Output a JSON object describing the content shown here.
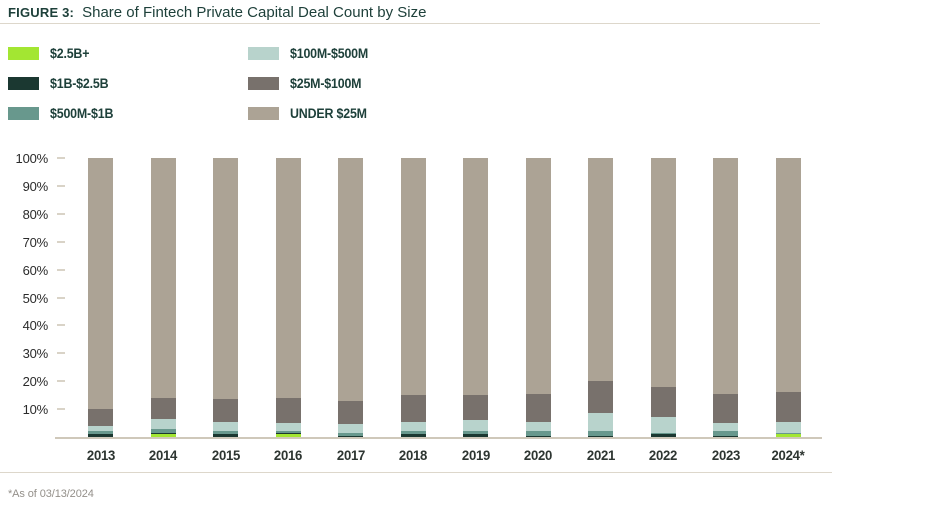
{
  "header": {
    "figure_label": "FIGURE 3:",
    "title": "Share of Fintech Private Capital Deal Count by Size"
  },
  "legend": {
    "items": [
      {
        "label": "$2.5B+",
        "color": "#a3e632"
      },
      {
        "label": "$1B-$2.5B",
        "color": "#1b3831"
      },
      {
        "label": "$500M-$1B",
        "color": "#68988d"
      },
      {
        "label": "$100M-$500M",
        "color": "#b8d3cc"
      },
      {
        "label": "$25M-$100M",
        "color": "#78716c"
      },
      {
        "label": "UNDER $25M",
        "color": "#aca395"
      }
    ]
  },
  "chart_data": {
    "type": "bar",
    "stacked": true,
    "title": "Share of Fintech Private Capital Deal Count by Size",
    "categories": [
      "2013",
      "2014",
      "2015",
      "2016",
      "2017",
      "2018",
      "2019",
      "2020",
      "2021",
      "2022",
      "2023",
      "2024*"
    ],
    "series": [
      {
        "name": "$2.5B+",
        "color": "#a3e632",
        "values": [
          0,
          1,
          0,
          1,
          0,
          0,
          0,
          0,
          0,
          0,
          0,
          1
        ]
      },
      {
        "name": "$1B-$2.5B",
        "color": "#1b3831",
        "values": [
          1,
          0.5,
          1,
          0.5,
          0.5,
          1,
          1,
          0.5,
          0.5,
          1,
          0.5,
          0
        ]
      },
      {
        "name": "$500M-$1B",
        "color": "#68988d",
        "values": [
          1,
          1.5,
          1,
          0.5,
          1,
          1,
          1,
          1.5,
          1.5,
          0.5,
          1.5,
          0.5
        ]
      },
      {
        "name": "$100M-$500M",
        "color": "#b8d3cc",
        "values": [
          2,
          3.5,
          3.5,
          3,
          3,
          3.5,
          4,
          3.5,
          6.5,
          5.5,
          3,
          4
        ]
      },
      {
        "name": "$25M-$100M",
        "color": "#78716c",
        "values": [
          6,
          7.5,
          8,
          9,
          8.5,
          9.5,
          9,
          10,
          11.5,
          11,
          10.5,
          10.5
        ]
      },
      {
        "name": "UNDER $25M",
        "color": "#aca395",
        "values": [
          90,
          86,
          86.5,
          86,
          87,
          85,
          85,
          84.5,
          80,
          82,
          84.5,
          84
        ]
      }
    ],
    "yticks": [
      "100%",
      "90%",
      "80%",
      "70%",
      "60%",
      "50%",
      "40%",
      "30%",
      "20%",
      "10%"
    ],
    "ylim": [
      0,
      100
    ],
    "grid": false,
    "legend_position": "top-left",
    "axis_line_color": "#cfc8ba"
  },
  "footnote": "*As of 03/13/2024"
}
